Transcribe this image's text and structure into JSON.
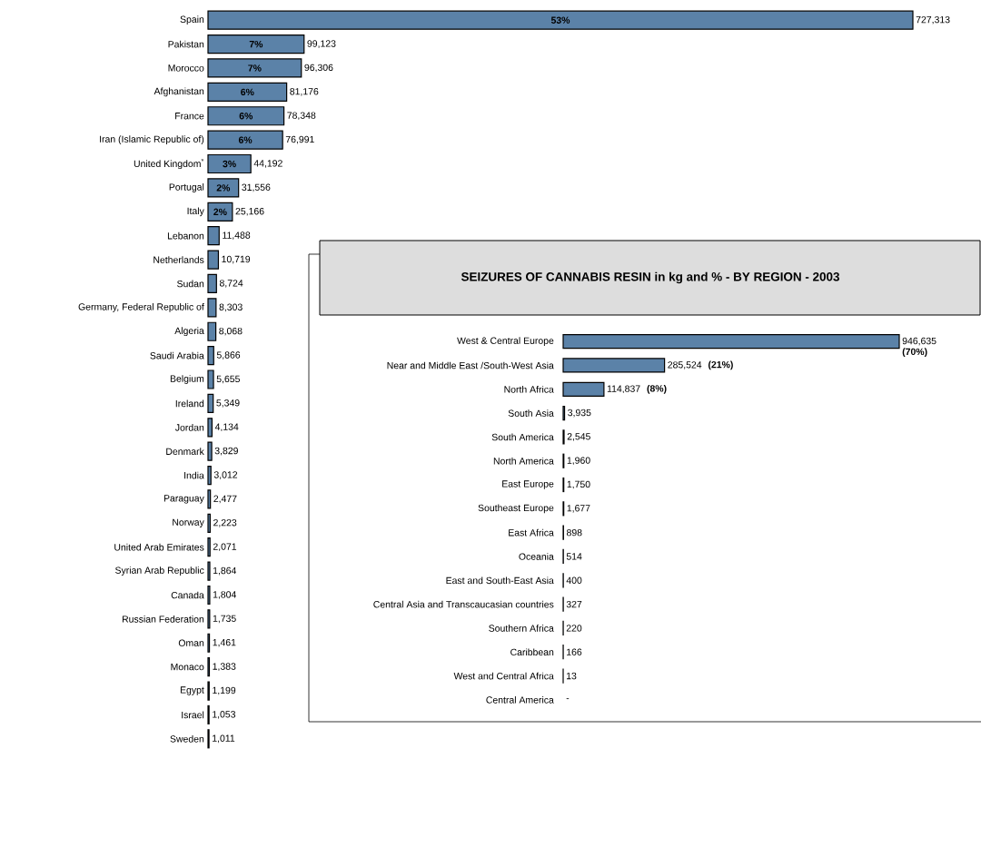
{
  "chart_data": [
    {
      "type": "bar",
      "orientation": "horizontal",
      "color": "#5b82a8",
      "categories": [
        "Spain",
        "Pakistan",
        "Morocco",
        "Afghanistan",
        "France",
        "Iran (Islamic Republic of)",
        "United Kingdom$^{*}$",
        "Portugal",
        "Italy",
        "Lebanon",
        "Netherlands",
        "Sudan",
        "Germany, Federal Republic of",
        "Algeria",
        "Saudi Arabia",
        "Belgium",
        "Ireland",
        "Jordan",
        "Denmark",
        "India",
        "Paraguay",
        "Norway",
        "United Arab Emirates",
        "Syrian Arab Republic",
        "Canada",
        "Russian Federation",
        "Oman",
        "Monaco",
        "Egypt",
        "Israel",
        "Sweden"
      ],
      "values": [
        727313,
        99123,
        96306,
        81176,
        78348,
        76991,
        44192,
        31556,
        25166,
        11488,
        10719,
        8724,
        8303,
        8068,
        5866,
        5655,
        5349,
        4134,
        3829,
        3012,
        2477,
        2223,
        2071,
        1864,
        1804,
        1735,
        1461,
        1383,
        1199,
        1053,
        1011
      ],
      "value_labels": [
        "727,313",
        "99,123",
        "96,306",
        "81,176",
        "78,348",
        "76,991",
        "44,192",
        "31,556",
        "25,166",
        "11,488",
        "10,719",
        "8,724",
        "8,303",
        "8,068",
        "5,866",
        "5,655",
        "5,349",
        "4,134",
        "3,829",
        "3,012",
        "2,477",
        "2,223",
        "2,071",
        "1,864",
        "1,804",
        "1,735",
        "1,461",
        "1,383",
        "1,199",
        "1,053",
        "1,011"
      ],
      "annotations": [
        {
          "text": "53%",
          "y": "Spain"
        },
        {
          "text": "7%",
          "y": "Pakistan"
        },
        {
          "text": "7%",
          "y": "Morocco"
        },
        {
          "text": "6%",
          "y": "Afghanistan"
        },
        {
          "text": "6%",
          "y": "France"
        },
        {
          "text": "6%",
          "y": "Iran (Islamic Republic of)"
        },
        {
          "text": "3%",
          "y": "United Kingdom$^{*}$"
        },
        {
          "text": "2%",
          "y": "Portugal"
        },
        {
          "text": "2%",
          "y": "Italy"
        }
      ]
    },
    {
      "type": "bar",
      "orientation": "horizontal",
      "color": "#5b82a8",
      "title": "SEIZURES OF CANNABIS RESIN in kg and % - BY REGION - 2003",
      "categories": [
        "West & Central Europe",
        "Near and Middle East /South-West Asia",
        "North Africa",
        "South Asia",
        "South America",
        "North America",
        "East Europe",
        "Southeast Europe",
        "East Africa",
        "Oceania",
        "East and South-East Asia",
        "Central Asia  and Transcaucasian countries",
        "Southern Africa",
        "Caribbean",
        "West and Central Africa",
        "Central America"
      ],
      "values": [
        946635,
        285524,
        114837,
        3935,
        2545,
        1960,
        1750,
        1677,
        898,
        514,
        400,
        327,
        220,
        166,
        13,
        null
      ],
      "value_labels": [
        "946,635",
        "285,524",
        "114,837",
        "3,935",
        "2,545",
        "1,960",
        "1,750",
        "1,677",
        "898",
        "514",
        "400",
        "327",
        "220",
        "166",
        "13",
        "-"
      ],
      "annotations": [
        "(70%)",
        "(21%)",
        "(8%)"
      ]
    }
  ]
}
